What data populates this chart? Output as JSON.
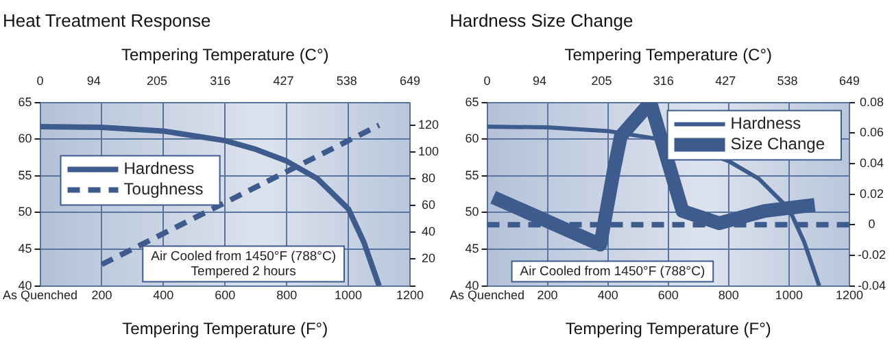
{
  "chart_data": [
    {
      "type": "line",
      "title": "Heat Treatment Response",
      "xlabel": "Tempering Temperature (F°)",
      "x2label": "Tempering Temperature (C°)",
      "xlim": [
        0,
        1200
      ],
      "xticks": [
        {
          "value": 0,
          "label": "As Quenched"
        },
        200,
        400,
        600,
        800,
        1000,
        1200
      ],
      "x2lim": [
        0,
        649
      ],
      "x2ticks": [
        0,
        94,
        205,
        316,
        427,
        538,
        649
      ],
      "ylim": [
        40,
        65
      ],
      "yticks": [
        40,
        45,
        50,
        55,
        60,
        65
      ],
      "y2lim": [
        0,
        137
      ],
      "y2ticks": [
        {
          "value": 0,
          "label": null
        },
        20,
        40,
        60,
        80,
        100,
        120
      ],
      "grid": true,
      "legend": "left",
      "series": [
        {
          "name": "Hardness",
          "color": "#3d5b8c",
          "x": [
            0,
            200,
            400,
            600,
            700,
            800,
            900,
            1000,
            1050,
            1100
          ],
          "values": [
            61.7,
            61.6,
            61.1,
            59.8,
            58.6,
            57,
            54.6,
            50.5,
            46,
            40
          ]
        },
        {
          "name": "Toughness",
          "color": "#3d5b8c",
          "axis": "y2",
          "line_style": "dashed",
          "x": [
            200,
            1100
          ],
          "values": [
            16,
            120
          ]
        }
      ],
      "annotations": [
        "Air Cooled from 1450°F (788°C) Tempered 2 hours"
      ]
    },
    {
      "type": "line",
      "title": "Hardness Size Change",
      "xlabel": "Tempering Temperature (F°)",
      "x2label": "Tempering Temperature (C°)",
      "xlim": [
        0,
        1200
      ],
      "xticks": [
        {
          "value": 0,
          "label": "As Quenched"
        },
        200,
        400,
        600,
        800,
        1000,
        1200
      ],
      "x2lim": [
        0,
        649
      ],
      "x2ticks": [
        0,
        94,
        205,
        316,
        427,
        538,
        649
      ],
      "ylim": [
        40,
        65
      ],
      "yticks": [
        40,
        45,
        50,
        55,
        60,
        65
      ],
      "y2lim": [
        -0.04,
        0.08
      ],
      "y2ticks": [
        -0.04,
        -0.02,
        0,
        0.02,
        0.04,
        0.06,
        0.08
      ],
      "grid": true,
      "legend": "top right",
      "series": [
        {
          "name": "Hardness",
          "color": "#3d5b8c",
          "x": [
            0,
            200,
            400,
            600,
            700,
            800,
            900,
            1000,
            1050,
            1100
          ],
          "values": [
            61.7,
            61.6,
            61.1,
            59.8,
            58.6,
            57,
            54.6,
            50.5,
            46,
            40
          ]
        },
        {
          "name": "Size Change",
          "color": "#3d5b8c",
          "axis": "y2",
          "x": [
            20,
            375,
            420,
            443,
            541,
            647,
            768,
            919,
            1085
          ],
          "values": [
            0.018,
            -0.013,
            0.036,
            0.058,
            0.08,
            0.009,
            0.001,
            0.009,
            0.013
          ]
        }
      ],
      "ref_lines": [
        {
          "axis": "y2",
          "value": 0,
          "color": "#3d5b8c",
          "line_style": "dashed"
        }
      ],
      "annotations": [
        "Air Cooled from 1450°F (788°C)"
      ]
    }
  ]
}
